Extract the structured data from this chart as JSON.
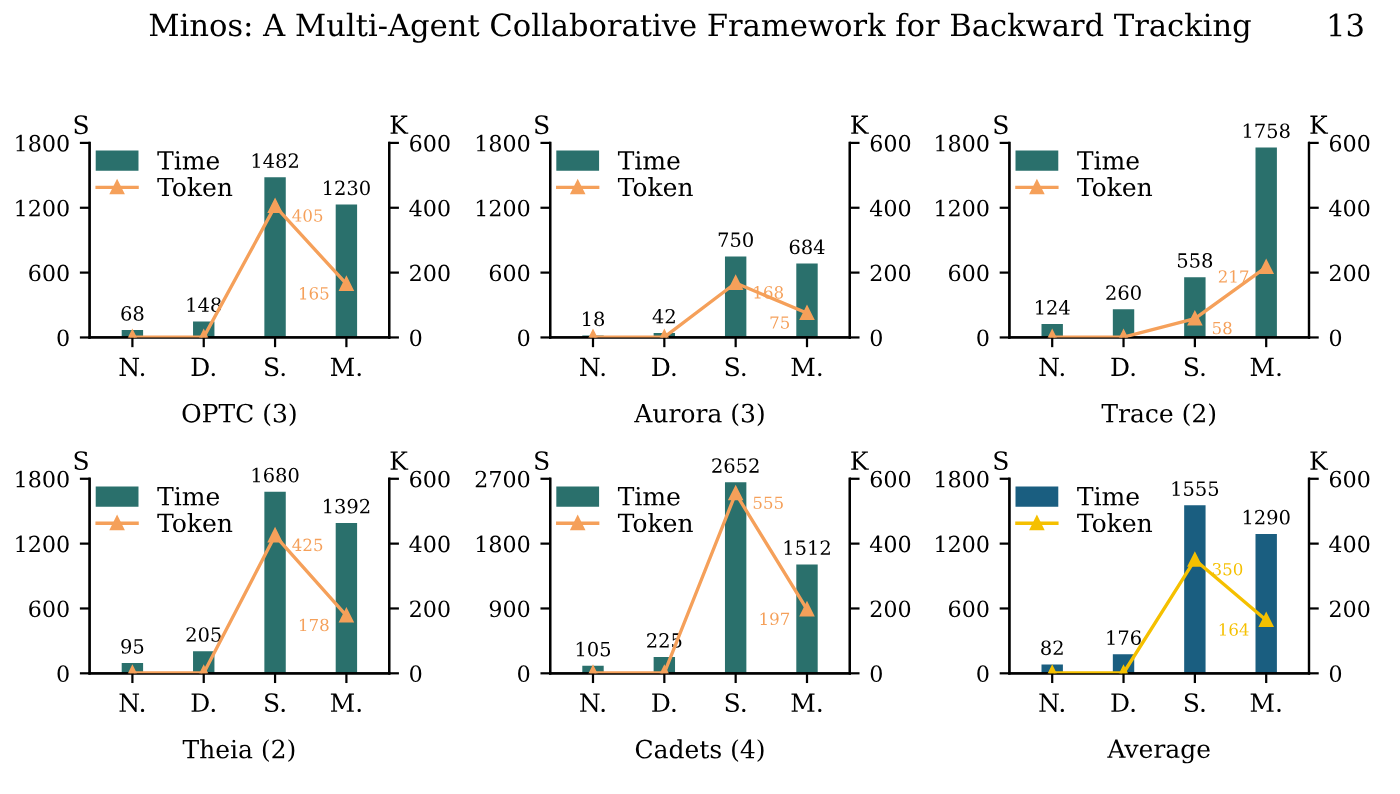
{
  "chart_data": [
    {
      "type": "bar",
      "xlabel": "OPTC (3)",
      "ylabel": "S",
      "y2label": "K",
      "categories": [
        "N.",
        "D.",
        "S.",
        "M."
      ],
      "legend": "top left",
      "marker": "triangle",
      "ylim": [
        0,
        1800
      ],
      "yticks": [
        0,
        600,
        1200,
        1800
      ],
      "y2lim": [
        0,
        600
      ],
      "y2ticks": [
        0,
        200,
        400,
        600
      ],
      "annotations": [
        "Minos: A Multi-Agent Collaborative Framework for Backward Tracking",
        "13"
      ],
      "series": [
        {
          "name": "Time",
          "type": "bar",
          "color": "#2a706c",
          "values": [
            68,
            148,
            1482,
            1230
          ],
          "value_labels": [
            "68",
            "148",
            "1482",
            "1230"
          ]
        },
        {
          "name": "Token",
          "type": "line",
          "axis": "y2",
          "color": "#f5a05a",
          "values": [
            1,
            1,
            405,
            165
          ],
          "value_labels": [
            null,
            null,
            "405",
            "165"
          ]
        }
      ]
    },
    {
      "type": "bar",
      "xlabel": "Aurora (3)",
      "ylabel": "S",
      "y2label": "K",
      "categories": [
        "N.",
        "D.",
        "S.",
        "M."
      ],
      "legend": "top left",
      "marker": "triangle",
      "ylim": [
        0,
        1800
      ],
      "yticks": [
        0,
        600,
        1200,
        1800
      ],
      "y2lim": [
        0,
        600
      ],
      "y2ticks": [
        0,
        200,
        400,
        600
      ],
      "series": [
        {
          "name": "Time",
          "type": "bar",
          "color": "#2a706c",
          "values": [
            18,
            42,
            750,
            684
          ],
          "value_labels": [
            "18",
            "42",
            "750",
            "684"
          ]
        },
        {
          "name": "Token",
          "type": "line",
          "axis": "y2",
          "color": "#f5a05a",
          "values": [
            1,
            1,
            168,
            75
          ],
          "value_labels": [
            null,
            null,
            "168",
            "75"
          ]
        }
      ]
    },
    {
      "type": "bar",
      "xlabel": "Trace (2)",
      "ylabel": "S",
      "y2label": "K",
      "categories": [
        "N.",
        "D.",
        "S.",
        "M."
      ],
      "legend": "top left",
      "marker": "triangle",
      "ylim": [
        0,
        1800
      ],
      "yticks": [
        0,
        600,
        1200,
        1800
      ],
      "y2lim": [
        0,
        600
      ],
      "y2ticks": [
        0,
        200,
        400,
        600
      ],
      "series": [
        {
          "name": "Time",
          "type": "bar",
          "color": "#2a706c",
          "values": [
            124,
            260,
            558,
            1758
          ],
          "value_labels": [
            "124",
            "260",
            "558",
            "1758"
          ]
        },
        {
          "name": "Token",
          "type": "line",
          "axis": "y2",
          "color": "#f5a05a",
          "values": [
            1,
            1,
            58,
            217
          ],
          "value_labels": [
            null,
            null,
            "58",
            "217"
          ]
        }
      ]
    },
    {
      "type": "bar",
      "xlabel": "Theia (2)",
      "ylabel": "S",
      "y2label": "K",
      "categories": [
        "N.",
        "D.",
        "S.",
        "M."
      ],
      "legend": "top left",
      "marker": "triangle",
      "ylim": [
        0,
        1800
      ],
      "yticks": [
        0,
        600,
        1200,
        1800
      ],
      "y2lim": [
        0,
        600
      ],
      "y2ticks": [
        0,
        200,
        400,
        600
      ],
      "series": [
        {
          "name": "Time",
          "type": "bar",
          "color": "#2a706c",
          "values": [
            95,
            205,
            1680,
            1392
          ],
          "value_labels": [
            "95",
            "205",
            "1680",
            "1392"
          ]
        },
        {
          "name": "Token",
          "type": "line",
          "axis": "y2",
          "color": "#f5a05a",
          "values": [
            1,
            1,
            425,
            178
          ],
          "value_labels": [
            null,
            null,
            "425",
            "178"
          ]
        }
      ]
    },
    {
      "type": "bar",
      "xlabel": "Cadets (4)",
      "ylabel": "S",
      "y2label": "K",
      "categories": [
        "N.",
        "D.",
        "S.",
        "M."
      ],
      "legend": "top left",
      "marker": "triangle",
      "ylim": [
        0,
        2700
      ],
      "yticks": [
        0,
        900,
        1800,
        2700
      ],
      "y2lim": [
        0,
        600
      ],
      "y2ticks": [
        0,
        200,
        400,
        600
      ],
      "series": [
        {
          "name": "Time",
          "type": "bar",
          "color": "#2a706c",
          "values": [
            105,
            225,
            2652,
            1512
          ],
          "value_labels": [
            "105",
            "225",
            "2652",
            "1512"
          ]
        },
        {
          "name": "Token",
          "type": "line",
          "axis": "y2",
          "color": "#f5a05a",
          "values": [
            1,
            1,
            555,
            197
          ],
          "value_labels": [
            null,
            null,
            "555",
            "197"
          ]
        }
      ]
    },
    {
      "type": "bar",
      "xlabel": "Average",
      "ylabel": "S",
      "y2label": "K",
      "categories": [
        "N.",
        "D.",
        "S.",
        "M."
      ],
      "legend": "top left",
      "marker": "triangle",
      "ylim": [
        0,
        1800
      ],
      "yticks": [
        0,
        600,
        1200,
        1800
      ],
      "y2lim": [
        0,
        600
      ],
      "y2ticks": [
        0,
        200,
        400,
        600
      ],
      "series": [
        {
          "name": "Time",
          "type": "bar",
          "color": "#1a5e80",
          "values": [
            82,
            176,
            1555,
            1290
          ],
          "value_labels": [
            "82",
            "176",
            "1555",
            "1290"
          ]
        },
        {
          "name": "Token",
          "type": "line",
          "axis": "y2",
          "color": "#f5c000",
          "values": [
            1,
            1,
            350,
            164
          ],
          "value_labels": [
            null,
            null,
            "350",
            "164"
          ]
        }
      ]
    }
  ]
}
